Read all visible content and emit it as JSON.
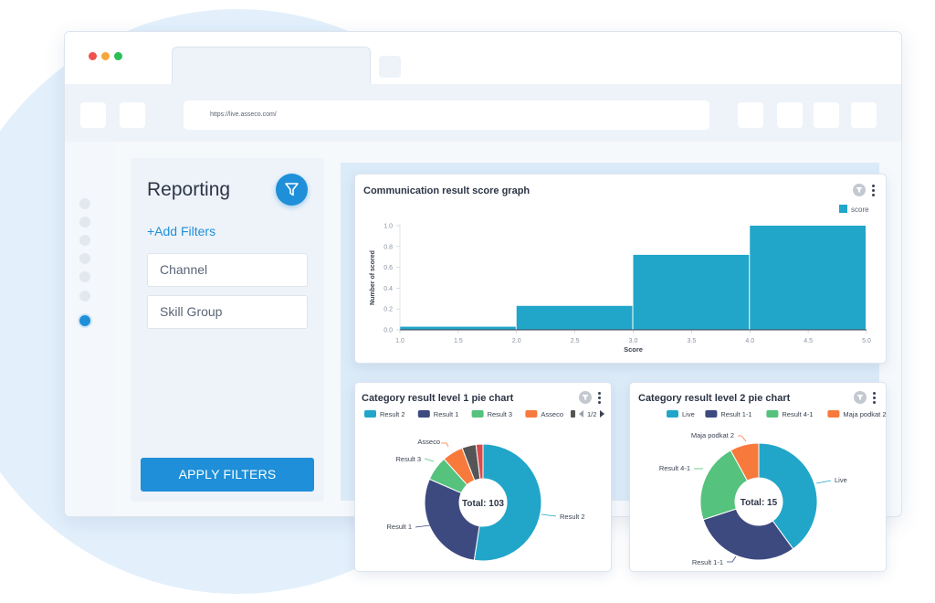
{
  "browser": {
    "url": "https://live.asseco.com/"
  },
  "sidebar": {
    "title": "Reporting",
    "add_filters": "+Add Filters",
    "fields": [
      {
        "label": "Channel"
      },
      {
        "label": "Skill Group"
      }
    ],
    "apply_label": "APPLY FILTERS"
  },
  "colors": {
    "accent": "#1e8fd8",
    "bar": "#21a6c9",
    "series": [
      "#21a6c9",
      "#3d4a80",
      "#55c27d",
      "#f77a3c",
      "#555555",
      "#d94c4c"
    ]
  },
  "chart_data": [
    {
      "type": "bar",
      "title": "Communication result score graph",
      "xlabel": "Score",
      "ylabel": "Number of scored",
      "legend": [
        "score"
      ],
      "legend_position": "top-right",
      "xlim": [
        1.0,
        5.0
      ],
      "ylim": [
        0.0,
        1.0
      ],
      "x_ticks": [
        "1.0",
        "1.5",
        "2.0",
        "2.5",
        "3.0",
        "3.5",
        "4.0",
        "4.5",
        "5.0"
      ],
      "y_ticks": [
        "0.0",
        "0.2",
        "0.4",
        "0.6",
        "0.8",
        "1.0"
      ],
      "bins": [
        {
          "from": 1.0,
          "to": 2.0,
          "value": 0.03
        },
        {
          "from": 2.0,
          "to": 3.0,
          "value": 0.23
        },
        {
          "from": 3.0,
          "to": 4.0,
          "value": 0.72
        },
        {
          "from": 4.0,
          "to": 5.0,
          "value": 1.0
        }
      ]
    },
    {
      "type": "pie",
      "title": "Category result level 1 pie chart",
      "total_label": "Total: 103",
      "legend": [
        "Result 2",
        "Result 1",
        "Result 3",
        "Asseco"
      ],
      "legend_page": "1/2",
      "slices": [
        {
          "name": "Result 2",
          "value": 54
        },
        {
          "name": "Result 1",
          "value": 30
        },
        {
          "name": "Result 3",
          "value": 7
        },
        {
          "name": "Asseco",
          "value": 6
        },
        {
          "name": "",
          "value": 4
        },
        {
          "name": "",
          "value": 2
        }
      ],
      "labels": [
        "Result 2",
        "Result 1",
        "Result 3",
        "Asseco"
      ]
    },
    {
      "type": "pie",
      "title": "Category result level 2 pie chart",
      "total_label": "Total: 15",
      "legend": [
        "Live",
        "Result 1-1",
        "Result 4-1",
        "Maja podkat 2"
      ],
      "slices": [
        {
          "name": "Live",
          "value": 6
        },
        {
          "name": "Result 1-1",
          "value": 4.5
        },
        {
          "name": "Result 4-1",
          "value": 3.3
        },
        {
          "name": "Maja podkat 2",
          "value": 1.2
        }
      ],
      "labels": [
        "Live",
        "Result 1-1",
        "Result 4-1",
        "Maja podkat 2"
      ]
    }
  ]
}
